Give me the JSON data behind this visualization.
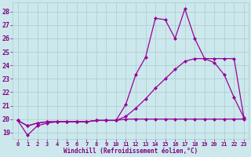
{
  "x": [
    0,
    1,
    2,
    3,
    4,
    5,
    6,
    7,
    8,
    9,
    10,
    11,
    12,
    13,
    14,
    15,
    16,
    17,
    18,
    19,
    20,
    21,
    22,
    23
  ],
  "line1": [
    19.9,
    18.8,
    19.5,
    19.7,
    19.8,
    19.8,
    19.8,
    19.8,
    19.9,
    19.9,
    19.9,
    21.1,
    23.3,
    24.6,
    27.5,
    27.4,
    26.0,
    28.2,
    26.0,
    24.5,
    24.2,
    23.3,
    21.6,
    20.1
  ],
  "line2": [
    19.9,
    19.5,
    19.7,
    19.8,
    19.8,
    19.8,
    19.8,
    19.8,
    19.9,
    19.9,
    19.9,
    20.2,
    20.8,
    21.5,
    22.3,
    23.0,
    23.7,
    24.3,
    24.5,
    24.5,
    24.5,
    24.5,
    24.5,
    20.1
  ],
  "line3": [
    19.9,
    19.5,
    19.7,
    19.8,
    19.8,
    19.8,
    19.8,
    19.8,
    19.9,
    19.9,
    19.9,
    20.0,
    20.0,
    20.0,
    20.0,
    20.0,
    20.0,
    20.0,
    20.0,
    20.0,
    20.0,
    20.0,
    20.0,
    20.0
  ],
  "line_color": "#990099",
  "bg_color": "#cce8ec",
  "grid_color": "#aaccd0",
  "xlabel": "Windchill (Refroidissement éolien,°C)",
  "xlabel_color": "#800080",
  "tick_color": "#800080",
  "ylim": [
    18.5,
    28.7
  ],
  "xlim": [
    -0.5,
    23.5
  ],
  "yticks": [
    19,
    20,
    21,
    22,
    23,
    24,
    25,
    26,
    27,
    28
  ],
  "xticks": [
    0,
    1,
    2,
    3,
    4,
    5,
    6,
    7,
    8,
    9,
    10,
    11,
    12,
    13,
    14,
    15,
    16,
    17,
    18,
    19,
    20,
    21,
    22,
    23
  ]
}
